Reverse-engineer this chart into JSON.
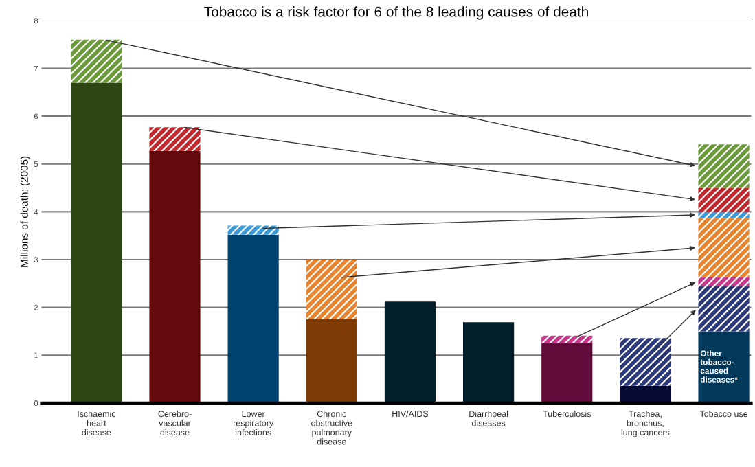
{
  "chart_data": {
    "type": "bar",
    "stacked": true,
    "title": "Tobacco is a risk factor for 6 of the 8 leading causes of death",
    "ylabel": "Millions of death: (2005)",
    "categories": [
      "Ischaemic\nheart\ndisease",
      "Cerebro-\nvascular\ndisease",
      "Lower\nrespiratory\ninfections",
      "Chronic\nobstructive\npulmonary\ndisease",
      "HIV/AIDS",
      "Diarrhoeal\ndiseases",
      "Tuberculosis",
      "Trachea,\nbronchus,\nlung cancers",
      "Tobacco use"
    ],
    "series": [
      {
        "values": [
          6.7,
          5.27,
          3.52,
          1.75,
          2.12,
          1.69,
          1.26,
          0.36,
          1.5
        ],
        "colors": [
          "#2b4513",
          "#640a0c",
          "#00426f",
          "#7f3b06",
          "#041f2c",
          "#041f2c",
          "#630b3b",
          "#050b33",
          "#02385a"
        ]
      },
      {
        "values": [
          null,
          null,
          null,
          null,
          null,
          null,
          null,
          1.0,
          0.95
        ],
        "color": "#2c3a7a"
      },
      {
        "values": [
          null,
          null,
          null,
          null,
          null,
          null,
          0.15,
          null,
          0.18
        ],
        "color": "#c8388a"
      },
      {
        "values": [
          null,
          null,
          null,
          1.25,
          null,
          null,
          null,
          null,
          1.24
        ],
        "color": "#e8842e"
      },
      {
        "values": [
          null,
          null,
          0.19,
          null,
          null,
          null,
          null,
          null,
          0.13
        ],
        "color": "#3a9ad8"
      },
      {
        "values": [
          null,
          0.5,
          null,
          null,
          null,
          null,
          null,
          null,
          0.5
        ],
        "color": "#c0282e"
      },
      {
        "values": [
          0.9,
          null,
          null,
          null,
          null,
          null,
          null,
          null,
          0.91
        ],
        "color": "#6a9a3a"
      }
    ],
    "ylim": [
      0,
      8
    ],
    "yticks": [
      0,
      1,
      2,
      3,
      4,
      5,
      6,
      7,
      8
    ],
    "grid": "y",
    "legend": false,
    "annotations": [
      "Other\ntobacco-\ncaused\ndiseases*"
    ]
  }
}
